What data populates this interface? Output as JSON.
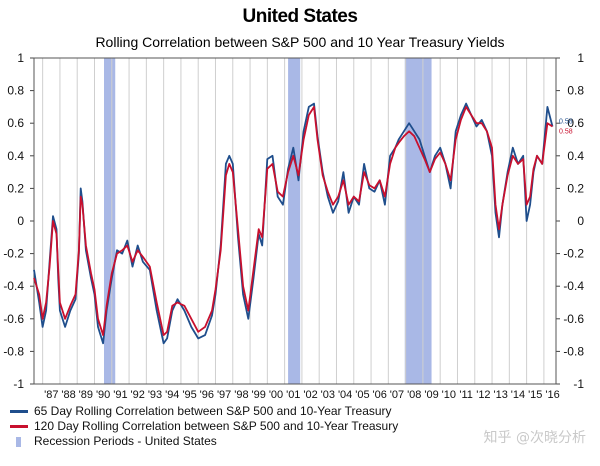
{
  "chart_data": {
    "type": "line",
    "title": "United States",
    "subtitle": "Rolling Correlation between S&P 500 and 10 Year Treasury Yields",
    "ylim": [
      -1,
      1
    ],
    "yticks": [
      -1,
      -0.8,
      -0.6,
      -0.4,
      -0.2,
      0,
      0.2,
      0.4,
      0.6,
      0.8,
      1
    ],
    "ytick_labels": [
      "-1",
      "-0.8",
      "-0.6",
      "-0.4",
      "-0.2",
      "0",
      "0.2",
      "0.4",
      "0.6",
      "0.8",
      "1"
    ],
    "xlim": [
      1986.5,
      2016.7
    ],
    "xticks": [
      "'87",
      "'88",
      "'89",
      "'90",
      "'91",
      "'92",
      "'93",
      "'94",
      "'95",
      "'96",
      "'97",
      "'98",
      "'99",
      "'00",
      "'01",
      "'02",
      "'03",
      "'04",
      "'05",
      "'06",
      "'07",
      "'08",
      "'09",
      "'10",
      "'11",
      "'12",
      "'13",
      "'14",
      "'15",
      "'16"
    ],
    "grid": true,
    "legend_position": "bottom-left",
    "recessions": [
      [
        1990.55,
        1991.2
      ],
      [
        2001.2,
        2001.9
      ],
      [
        2007.95,
        2009.5
      ]
    ],
    "series": [
      {
        "name": "65 Day Rolling Correlation between S&P 500 and 10-Year Treasury",
        "color": "#1f4e8c",
        "x": [
          1986.5,
          1986.8,
          1987.0,
          1987.2,
          1987.4,
          1987.6,
          1987.8,
          1987.9,
          1988.0,
          1988.3,
          1988.6,
          1988.9,
          1989.1,
          1989.2,
          1989.3,
          1989.5,
          1989.8,
          1990.0,
          1990.2,
          1990.5,
          1990.7,
          1991.0,
          1991.3,
          1991.6,
          1991.9,
          1992.2,
          1992.5,
          1992.8,
          1993.2,
          1993.6,
          1994.0,
          1994.2,
          1994.5,
          1994.8,
          1995.2,
          1995.6,
          1996.0,
          1996.4,
          1996.8,
          1997.0,
          1997.3,
          1997.6,
          1997.8,
          1998.0,
          1998.3,
          1998.6,
          1998.9,
          1999.2,
          1999.5,
          1999.7,
          2000.0,
          2000.3,
          2000.6,
          2000.9,
          2001.2,
          2001.5,
          2001.8,
          2002.1,
          2002.4,
          2002.7,
          2002.9,
          2003.2,
          2003.5,
          2003.8,
          2004.1,
          2004.4,
          2004.7,
          2005.0,
          2005.3,
          2005.6,
          2005.9,
          2006.2,
          2006.5,
          2006.8,
          2007.1,
          2007.4,
          2007.6,
          2007.9,
          2008.2,
          2008.5,
          2008.8,
          2009.1,
          2009.4,
          2009.7,
          2010.0,
          2010.3,
          2010.6,
          2010.9,
          2011.2,
          2011.5,
          2011.8,
          2012.1,
          2012.4,
          2012.7,
          2013.0,
          2013.2,
          2013.4,
          2013.6,
          2013.9,
          2014.2,
          2014.5,
          2014.8,
          2015.0,
          2015.2,
          2015.4,
          2015.6,
          2015.9,
          2016.2,
          2016.5
        ],
        "y": [
          -0.3,
          -0.5,
          -0.65,
          -0.55,
          -0.25,
          0.03,
          -0.05,
          -0.35,
          -0.55,
          -0.65,
          -0.55,
          -0.48,
          -0.2,
          0.2,
          0.12,
          -0.18,
          -0.35,
          -0.45,
          -0.65,
          -0.75,
          -0.55,
          -0.35,
          -0.18,
          -0.2,
          -0.12,
          -0.28,
          -0.15,
          -0.25,
          -0.3,
          -0.55,
          -0.75,
          -0.72,
          -0.55,
          -0.48,
          -0.55,
          -0.65,
          -0.72,
          -0.7,
          -0.58,
          -0.45,
          -0.15,
          0.35,
          0.4,
          0.35,
          -0.1,
          -0.45,
          -0.6,
          -0.35,
          -0.08,
          -0.15,
          0.38,
          0.4,
          0.15,
          0.1,
          0.32,
          0.45,
          0.25,
          0.55,
          0.7,
          0.72,
          0.52,
          0.3,
          0.15,
          0.05,
          0.12,
          0.3,
          0.05,
          0.15,
          0.1,
          0.35,
          0.2,
          0.18,
          0.25,
          0.1,
          0.4,
          0.45,
          0.5,
          0.55,
          0.6,
          0.55,
          0.5,
          0.4,
          0.3,
          0.4,
          0.45,
          0.35,
          0.2,
          0.55,
          0.65,
          0.72,
          0.65,
          0.58,
          0.62,
          0.55,
          0.4,
          0.05,
          -0.1,
          0.1,
          0.3,
          0.45,
          0.35,
          0.4,
          0.0,
          0.1,
          0.3,
          0.4,
          0.35,
          0.7,
          0.58
        ]
      },
      {
        "name": "120 Day Rolling Correlation between S&P 500 and 10-Year Treasury",
        "color": "#c8102e",
        "x": [
          1986.5,
          1986.8,
          1987.0,
          1987.2,
          1987.4,
          1987.6,
          1987.8,
          1987.9,
          1988.0,
          1988.3,
          1988.6,
          1988.9,
          1989.1,
          1989.2,
          1989.3,
          1989.5,
          1989.8,
          1990.0,
          1990.2,
          1990.5,
          1990.7,
          1991.0,
          1991.3,
          1991.6,
          1991.9,
          1992.2,
          1992.5,
          1992.8,
          1993.2,
          1993.6,
          1994.0,
          1994.2,
          1994.5,
          1994.8,
          1995.2,
          1995.6,
          1996.0,
          1996.4,
          1996.8,
          1997.0,
          1997.3,
          1997.6,
          1997.8,
          1998.0,
          1998.3,
          1998.6,
          1998.9,
          1999.2,
          1999.5,
          1999.7,
          2000.0,
          2000.3,
          2000.6,
          2000.9,
          2001.2,
          2001.5,
          2001.8,
          2002.1,
          2002.4,
          2002.7,
          2002.9,
          2003.2,
          2003.5,
          2003.8,
          2004.1,
          2004.4,
          2004.7,
          2005.0,
          2005.3,
          2005.6,
          2005.9,
          2006.2,
          2006.5,
          2006.8,
          2007.1,
          2007.4,
          2007.6,
          2007.9,
          2008.2,
          2008.5,
          2008.8,
          2009.1,
          2009.4,
          2009.7,
          2010.0,
          2010.3,
          2010.6,
          2010.9,
          2011.2,
          2011.5,
          2011.8,
          2012.1,
          2012.4,
          2012.7,
          2013.0,
          2013.2,
          2013.4,
          2013.6,
          2013.9,
          2014.2,
          2014.5,
          2014.8,
          2015.0,
          2015.2,
          2015.4,
          2015.6,
          2015.9,
          2016.2,
          2016.5
        ],
        "y": [
          -0.35,
          -0.45,
          -0.6,
          -0.5,
          -0.28,
          0.0,
          -0.08,
          -0.3,
          -0.5,
          -0.6,
          -0.52,
          -0.45,
          -0.18,
          0.15,
          0.1,
          -0.15,
          -0.32,
          -0.42,
          -0.6,
          -0.7,
          -0.52,
          -0.32,
          -0.2,
          -0.18,
          -0.15,
          -0.25,
          -0.18,
          -0.22,
          -0.28,
          -0.5,
          -0.7,
          -0.68,
          -0.52,
          -0.5,
          -0.52,
          -0.6,
          -0.68,
          -0.65,
          -0.55,
          -0.42,
          -0.18,
          0.28,
          0.35,
          0.3,
          -0.05,
          -0.4,
          -0.55,
          -0.3,
          -0.05,
          -0.1,
          0.32,
          0.35,
          0.18,
          0.15,
          0.3,
          0.4,
          0.28,
          0.5,
          0.65,
          0.7,
          0.5,
          0.28,
          0.18,
          0.1,
          0.15,
          0.25,
          0.1,
          0.15,
          0.12,
          0.3,
          0.22,
          0.2,
          0.25,
          0.15,
          0.35,
          0.45,
          0.48,
          0.52,
          0.55,
          0.52,
          0.45,
          0.38,
          0.3,
          0.38,
          0.42,
          0.35,
          0.25,
          0.5,
          0.62,
          0.7,
          0.65,
          0.6,
          0.6,
          0.55,
          0.45,
          0.1,
          -0.05,
          0.1,
          0.28,
          0.4,
          0.35,
          0.38,
          0.1,
          0.15,
          0.32,
          0.4,
          0.35,
          0.6,
          0.58
        ]
      }
    ],
    "end_labels": [
      {
        "text": "0.58",
        "series": 0,
        "y": 0.58,
        "color": "#1f4e8c"
      },
      {
        "text": "0.58",
        "series": 1,
        "y": 0.58,
        "color": "#c8102e"
      }
    ],
    "legend": [
      {
        "label": "65 Day Rolling Correlation between S&P 500 and 10-Year Treasury",
        "kind": "line",
        "color": "#1f4e8c"
      },
      {
        "label": "120 Day Rolling Correlation between S&P 500 and 10-Year Treasury",
        "kind": "line",
        "color": "#c8102e"
      },
      {
        "label": "Recession Periods - United States",
        "kind": "box",
        "color": "#a9b8e6"
      }
    ],
    "colors": {
      "recession": "#a9b8e6",
      "grid": "#cfcfcf"
    }
  },
  "watermark": "知乎 @次晓分析"
}
